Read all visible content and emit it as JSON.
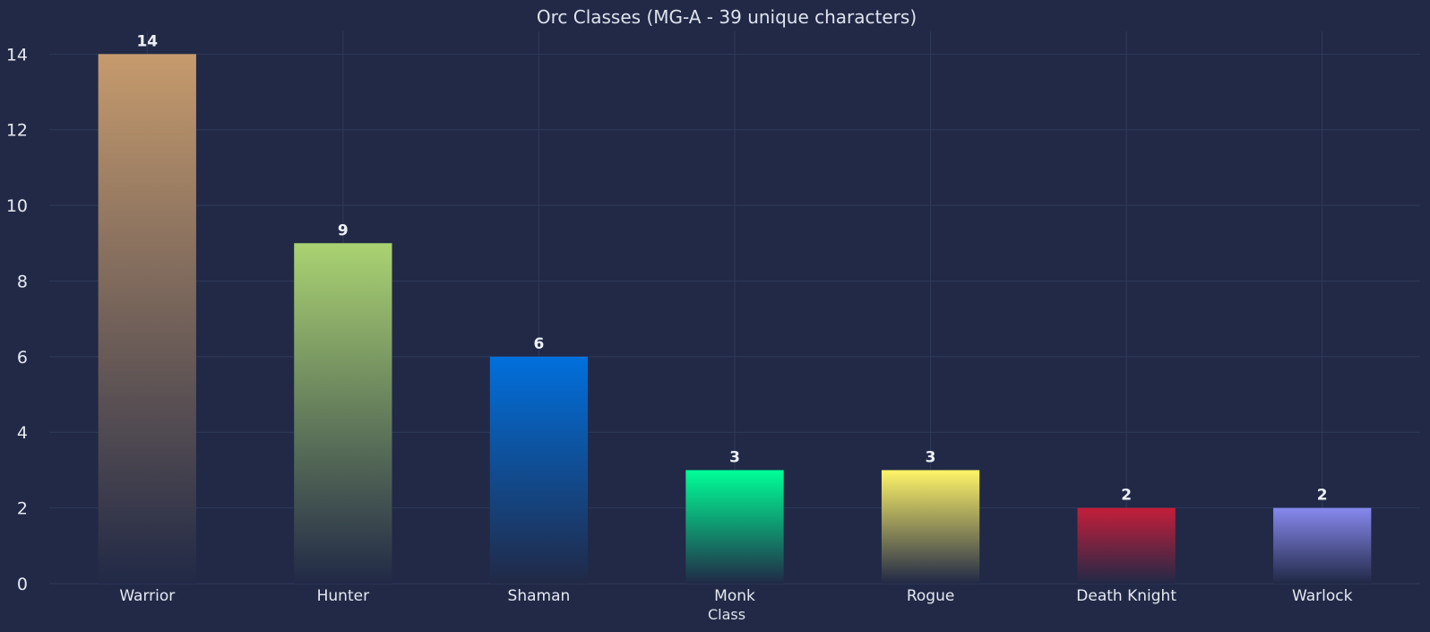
{
  "chart_data": {
    "type": "bar",
    "title": "Orc Classes (MG-A - 39 unique characters)",
    "xlabel": "Class",
    "ylabel": "",
    "categories": [
      "Warrior",
      "Hunter",
      "Shaman",
      "Monk",
      "Rogue",
      "Death Knight",
      "Warlock"
    ],
    "values": [
      14,
      9,
      6,
      3,
      3,
      2,
      2
    ],
    "data_labels": [
      "14",
      "9",
      "6",
      "3",
      "3",
      "2",
      "2"
    ],
    "colors": [
      "#C69B6D",
      "#AAD372",
      "#0070DD",
      "#00FF98",
      "#FFF468",
      "#C41E3A",
      "#8788EE"
    ],
    "ylim": [
      0,
      14.6
    ],
    "yticks": [
      0,
      2,
      4,
      6,
      8,
      10,
      12,
      14
    ],
    "ytick_labels": [
      "0",
      "2",
      "4",
      "6",
      "8",
      "10",
      "12",
      "14"
    ],
    "grid": true,
    "background": "#212946"
  }
}
